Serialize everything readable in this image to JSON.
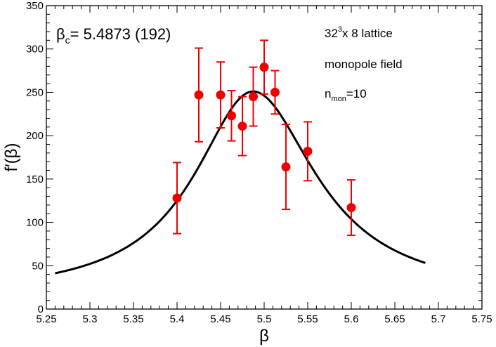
{
  "chart_data": {
    "type": "scatter",
    "title": "",
    "xlabel": "β",
    "ylabel": "f′(β)",
    "xlim": [
      5.25,
      5.75
    ],
    "ylim": [
      0,
      350
    ],
    "xticks": [
      5.25,
      5.3,
      5.35,
      5.4,
      5.45,
      5.5,
      5.55,
      5.6,
      5.65,
      5.7,
      5.75
    ],
    "xtick_labels": [
      "5.25",
      "5.3",
      "5.35",
      "5.4",
      "5.45",
      "5.5",
      "5.55",
      "5.6",
      "5.65",
      "5.7",
      "5.75"
    ],
    "yticks": [
      0,
      50,
      100,
      150,
      200,
      250,
      300,
      350
    ],
    "ytick_labels": [
      "0",
      "50",
      "100",
      "150",
      "200",
      "250",
      "300",
      "350"
    ],
    "grid": false,
    "series": [
      {
        "name": "data",
        "type": "scatter_errorbar",
        "color": "#ee0000",
        "x": [
          5.4,
          5.425,
          5.45,
          5.4625,
          5.475,
          5.4875,
          5.5,
          5.5125,
          5.525,
          5.55,
          5.6
        ],
        "y": [
          128,
          247,
          247,
          223,
          211,
          245,
          279,
          250,
          164,
          182,
          117
        ],
        "yerr": [
          41,
          54,
          38,
          29,
          34,
          34,
          31,
          25,
          49,
          34,
          32
        ]
      },
      {
        "name": "fit",
        "type": "line",
        "color": "#000000",
        "x_range": [
          5.26,
          5.685
        ],
        "peak_x": 5.4873,
        "peak_y": 251,
        "note": "smooth fit curve through the data"
      }
    ],
    "annotations": {
      "beta_c_symbol": "β",
      "beta_c_sub": "c",
      "beta_c_value": "= 5.4873 (192)",
      "lattice_base": "32",
      "lattice_sup": "3",
      "lattice_rest": "x 8 lattice",
      "field": "monopole field",
      "nmon_base": "n",
      "nmon_sub": "mon",
      "nmon_rest": "=10"
    }
  }
}
